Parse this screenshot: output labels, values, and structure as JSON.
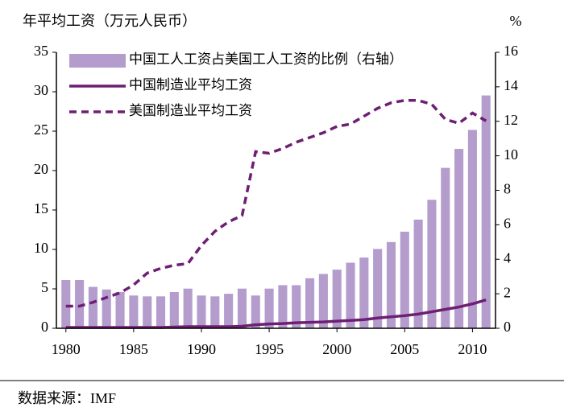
{
  "chart_data": {
    "type": "combo",
    "y_label": "年平均工资（万元人民币）",
    "y2_label": "%",
    "source": "数据来源：IMF",
    "x": [
      1980,
      1981,
      1982,
      1983,
      1984,
      1985,
      1986,
      1987,
      1988,
      1989,
      1990,
      1991,
      1992,
      1993,
      1994,
      1995,
      1996,
      1997,
      1998,
      1999,
      2000,
      2001,
      2002,
      2003,
      2004,
      2005,
      2006,
      2007,
      2008,
      2009,
      2010,
      2011
    ],
    "xlim": [
      1979.3,
      2011.7
    ],
    "xticks": [
      1980,
      1985,
      1990,
      1995,
      2000,
      2005,
      2010
    ],
    "ylim": [
      0,
      35
    ],
    "yticks": [
      0,
      5,
      10,
      15,
      20,
      25,
      30,
      35
    ],
    "y2lim": [
      0,
      16
    ],
    "y2ticks": [
      0,
      2,
      4,
      6,
      8,
      10,
      12,
      14,
      16
    ],
    "series": [
      {
        "name": "中国工人工资占美国工人工资的比例（右轴）",
        "type": "bar",
        "axis": "y2",
        "color": "#b49dcc",
        "values": [
          2.8,
          2.8,
          2.4,
          2.25,
          2.1,
          1.9,
          1.85,
          1.85,
          2.1,
          2.3,
          1.9,
          1.85,
          2.0,
          2.3,
          1.9,
          2.3,
          2.5,
          2.5,
          2.9,
          3.15,
          3.4,
          3.8,
          4.1,
          4.6,
          5.0,
          5.6,
          6.3,
          7.45,
          9.3,
          10.4,
          11.5,
          13.5
        ]
      },
      {
        "name": "中国制造业平均工资",
        "type": "line",
        "dash": false,
        "color": "#6e1f74",
        "values": [
          0.1,
          0.1,
          0.1,
          0.1,
          0.1,
          0.1,
          0.1,
          0.1,
          0.15,
          0.2,
          0.2,
          0.2,
          0.2,
          0.25,
          0.45,
          0.55,
          0.6,
          0.7,
          0.75,
          0.8,
          0.9,
          1.0,
          1.1,
          1.3,
          1.45,
          1.6,
          1.8,
          2.1,
          2.4,
          2.7,
          3.1,
          3.6
        ]
      },
      {
        "name": "美国制造业平均工资",
        "type": "line",
        "dash": true,
        "color": "#6e1f74",
        "values": [
          2.8,
          2.8,
          3.3,
          3.9,
          4.5,
          5.5,
          7.0,
          7.6,
          8.0,
          8.2,
          10.5,
          12.3,
          13.5,
          14.3,
          22.4,
          22.2,
          22.8,
          23.6,
          24.2,
          24.8,
          25.6,
          25.9,
          26.9,
          27.9,
          28.6,
          28.9,
          28.9,
          28.4,
          26.5,
          26.0,
          27.3,
          26.3
        ]
      }
    ]
  }
}
